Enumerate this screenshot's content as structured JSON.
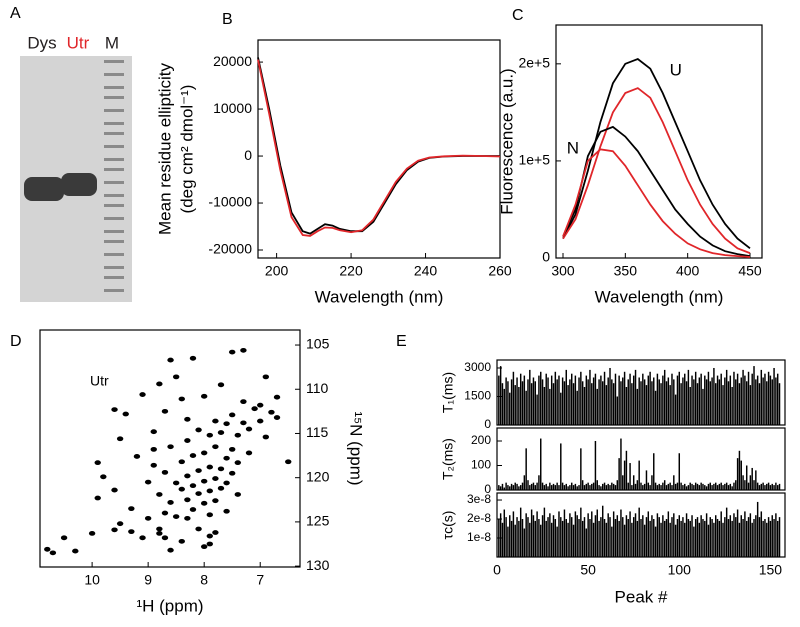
{
  "chart_data": [
    {
      "type": "gel",
      "panel_label": "A",
      "lanes": [
        "Dys",
        "Utr",
        "M"
      ],
      "lane_colors": [
        "#231f20",
        "#e0262a",
        "#231f20"
      ]
    },
    {
      "type": "line",
      "panel_label": "B",
      "x_label": "Wavelength (nm)",
      "y_label": [
        "Mean residue ellipticity",
        "(deg cm² dmol⁻¹)"
      ],
      "x": [
        195,
        198,
        201,
        204,
        207,
        209,
        211,
        213,
        215,
        217,
        220,
        223,
        226,
        229,
        232,
        235,
        238,
        241,
        245,
        250,
        255,
        260
      ],
      "series": [
        {
          "color": "#000000",
          "values": [
            21000,
            10000,
            -2000,
            -12000,
            -16000,
            -16500,
            -15500,
            -14500,
            -14800,
            -15500,
            -16000,
            -16000,
            -14000,
            -10000,
            -6000,
            -3000,
            -1200,
            -400,
            -100,
            0,
            0,
            0
          ]
        },
        {
          "color": "#e0262a",
          "values": [
            20500,
            9000,
            -3000,
            -13000,
            -16800,
            -17000,
            -16000,
            -15200,
            -15300,
            -15800,
            -16200,
            -15800,
            -13500,
            -9500,
            -5500,
            -2700,
            -1000,
            -300,
            -50,
            100,
            0,
            -100
          ]
        }
      ],
      "xlim": [
        195,
        260
      ],
      "xticks": [
        200,
        220,
        240,
        260
      ],
      "ylim": [
        -21700,
        24700
      ],
      "yticks": [
        -20000,
        -10000,
        0,
        10000,
        20000
      ]
    },
    {
      "type": "line",
      "panel_label": "C",
      "x_label": "Wavelength (nm)",
      "y_label": [
        "Fluorescence (a.u.)"
      ],
      "x": [
        300,
        310,
        320,
        330,
        340,
        350,
        360,
        370,
        380,
        390,
        400,
        410,
        420,
        430,
        440,
        450
      ],
      "series": [
        {
          "label": "U",
          "color": "#000000",
          "values": [
            20000,
            45000,
            90000,
            140000,
            180000,
            200000,
            205000,
            195000,
            170000,
            140000,
            110000,
            80000,
            55000,
            35000,
            20000,
            10000
          ]
        },
        {
          "color": "#e0262a",
          "values": [
            20000,
            40000,
            75000,
            115000,
            150000,
            170000,
            175000,
            165000,
            140000,
            110000,
            80000,
            55000,
            35000,
            20000,
            10000,
            5000
          ]
        },
        {
          "label": "N",
          "color": "#000000",
          "values": [
            22000,
            50000,
            105000,
            130000,
            135000,
            125000,
            110000,
            90000,
            70000,
            50000,
            35000,
            22000,
            13000,
            7000,
            4000,
            2000
          ]
        },
        {
          "color": "#e0262a",
          "values": [
            22000,
            55000,
            100000,
            112000,
            110000,
            95000,
            75000,
            55000,
            38000,
            25000,
            15000,
            9000,
            5000,
            3000,
            2000,
            1000
          ]
        }
      ],
      "xlim": [
        300,
        450
      ],
      "xticks": [
        300,
        350,
        400,
        450
      ],
      "ylim": [
        0,
        240000
      ],
      "yticks": [
        0,
        {
          "value": 100000,
          "label": "1e+5"
        },
        {
          "value": 200000,
          "label": "2e+5"
        }
      ]
    },
    {
      "type": "scatter",
      "panel_label": "D",
      "annotation": "Utr",
      "x_label": "¹H (ppm)",
      "y_label": "¹⁵N (ppm)",
      "color": "#000000",
      "x": [
        10.8,
        10.7,
        10.5,
        10.3,
        10.0,
        9.6,
        9.3,
        8.8,
        8.7,
        7.9,
        7.8,
        9.9,
        9.8,
        9.9,
        9.6,
        9.5,
        9.5,
        9.3,
        9.2,
        9.4,
        9.1,
        9.0,
        9.0,
        8.9,
        8.9,
        8.8,
        8.8,
        8.7,
        8.7,
        8.6,
        8.6,
        8.5,
        8.5,
        8.5,
        8.4,
        8.4,
        8.4,
        8.3,
        8.3,
        8.3,
        8.3,
        8.2,
        8.2,
        8.2,
        8.2,
        8.1,
        8.1,
        8.1,
        8.1,
        8.0,
        8.0,
        8.0,
        8.0,
        7.9,
        7.9,
        7.9,
        7.9,
        7.8,
        7.8,
        7.8,
        7.8,
        7.7,
        7.7,
        7.7,
        7.7,
        7.6,
        7.6,
        7.6,
        7.6,
        7.5,
        7.5,
        7.5,
        7.5,
        7.4,
        7.4,
        7.4,
        7.3,
        7.3,
        7.2,
        7.2,
        7.1,
        7.0,
        7.0,
        6.9,
        6.9,
        6.8,
        6.7,
        6.7,
        6.5,
        8.6,
        7.3,
        8.8,
        8.4,
        8.9,
        9.1,
        8.6,
        8.3,
        7.9,
        8.7,
        9.6,
        8.0
      ],
      "y": [
        128.1,
        128.5,
        126.8,
        128.3,
        126.3,
        125.9,
        126.1,
        125.8,
        126.8,
        127.5,
        126.2,
        118.3,
        119.9,
        122.3,
        121.4,
        115.6,
        125.2,
        123.5,
        117.6,
        112.8,
        110.6,
        120.5,
        124.6,
        118.6,
        114.8,
        121.9,
        126.3,
        112.5,
        119.4,
        122.8,
        116.5,
        120.6,
        124.4,
        108.6,
        118.2,
        121.3,
        127.2,
        119.8,
        122.5,
        115.8,
        113.4,
        120.9,
        123.6,
        117.5,
        106.5,
        119.2,
        121.8,
        125.8,
        114.6,
        120.4,
        122.9,
        117.2,
        110.8,
        118.8,
        121.5,
        124.2,
        115.2,
        120.1,
        122.6,
        116.5,
        113.6,
        119.0,
        121.2,
        114.9,
        109.5,
        117.8,
        120.6,
        123.8,
        113.9,
        116.8,
        119.5,
        112.9,
        105.8,
        115.2,
        118.3,
        121.9,
        113.8,
        111.4,
        114.5,
        117.2,
        112.2,
        113.6,
        111.8,
        115.4,
        108.6,
        112.6,
        110.9,
        113.2,
        118.2,
        106.7,
        105.6,
        109.4,
        111.1,
        116.8,
        126.8,
        128.2,
        124.6,
        126.6,
        124.0,
        112.3,
        127.8
      ],
      "xlim": [
        6.29,
        10.93
      ],
      "x_inverted": true,
      "xticks": [
        10,
        9,
        8,
        7
      ],
      "ylim": [
        103.3,
        130.1
      ],
      "y_inverted": true,
      "y_axis_side": "right",
      "yticks": [
        105,
        110,
        115,
        120,
        125,
        130
      ]
    },
    {
      "type": "bar",
      "panel_label": "E",
      "x_label": "Peak #",
      "color": "#000000",
      "x": [
        1,
        2,
        3,
        4,
        5,
        6,
        7,
        8,
        9,
        10,
        11,
        12,
        13,
        14,
        15,
        16,
        17,
        18,
        19,
        20,
        21,
        22,
        23,
        24,
        25,
        26,
        27,
        28,
        29,
        30,
        31,
        32,
        33,
        34,
        35,
        36,
        37,
        38,
        39,
        40,
        41,
        42,
        43,
        44,
        45,
        46,
        47,
        48,
        49,
        50,
        51,
        52,
        53,
        54,
        55,
        56,
        57,
        58,
        59,
        60,
        61,
        62,
        63,
        64,
        65,
        66,
        67,
        68,
        69,
        70,
        71,
        72,
        73,
        74,
        75,
        76,
        77,
        78,
        79,
        80,
        81,
        82,
        83,
        84,
        85,
        86,
        87,
        88,
        89,
        90,
        91,
        92,
        93,
        94,
        95,
        96,
        97,
        98,
        99,
        100,
        101,
        102,
        103,
        104,
        105,
        106,
        107,
        108,
        109,
        110,
        111,
        112,
        113,
        114,
        115,
        116,
        117,
        118,
        119,
        120,
        121,
        122,
        123,
        124,
        125,
        126,
        127,
        128,
        129,
        130,
        131,
        132,
        133,
        134,
        135,
        136,
        137,
        138,
        139,
        140,
        141,
        142,
        143,
        144,
        145,
        146,
        147,
        148,
        149,
        150,
        151,
        152,
        153,
        154,
        155
      ],
      "xlim": [
        0,
        158
      ],
      "xticks": [
        0,
        50,
        100,
        150
      ],
      "panels": [
        {
          "y_label": "T₁(ms)",
          "ylim": [
            0,
            3420
          ],
          "yticks": [
            0,
            1500,
            3000
          ],
          "values": [
            2600,
            3100,
            2200,
            1900,
            2500,
            2300,
            1700,
            2400,
            2800,
            2100,
            2500,
            2000,
            2700,
            2300,
            2600,
            1800,
            2400,
            2900,
            2200,
            2500,
            2300,
            1600,
            2600,
            2800,
            2400,
            2000,
            2700,
            2500,
            1900,
            2600,
            2200,
            2800,
            2400,
            2600,
            1700,
            2500,
            2300,
            2900,
            2100,
            2400,
            2700,
            2200,
            2600,
            1800,
            2500,
            2800,
            2300,
            2000,
            2600,
            2400,
            2900,
            2200,
            2500,
            2700,
            1900,
            2400,
            2600,
            2300,
            2800,
            2100,
            2500,
            3000,
            2400,
            2200,
            2700,
            1500,
            2600,
            2300,
            2500,
            2800,
            2000,
            2400,
            2700,
            2200,
            2600,
            2900,
            1900,
            2500,
            2300,
            2700,
            2400,
            2100,
            2600,
            2800,
            2300,
            2500,
            1800,
            2700,
            2400,
            2200,
            2600,
            2900,
            2300,
            2500,
            2100,
            2700,
            2400,
            1600,
            2600,
            2800,
            2200,
            2500,
            2700,
            2300,
            2900,
            2000,
            2600,
            2400,
            2800,
            2200,
            2500,
            2700,
            1900,
            2600,
            2400,
            2800,
            2300,
            2500,
            3000,
            2200,
            2600,
            2400,
            2700,
            2100,
            2500,
            2900,
            2300,
            2600,
            2000,
            2800,
            2400,
            2700,
            2200,
            2500,
            2900,
            2600,
            2300,
            2800,
            2100,
            2700,
            3100,
            2400,
            2600,
            2200,
            2900,
            2500,
            2700,
            2300,
            2800,
            2600,
            2400,
            3000,
            2500,
            2700,
            2200
          ]
        },
        {
          "y_label": "T₂(ms)",
          "ylim": [
            0,
            253
          ],
          "yticks": [
            0,
            100,
            200
          ],
          "values": [
            20,
            15,
            25,
            10,
            30,
            20,
            15,
            25,
            20,
            30,
            25,
            15,
            20,
            30,
            60,
            170,
            40,
            20,
            25,
            30,
            20,
            30,
            60,
            210,
            30,
            20,
            25,
            15,
            30,
            20,
            25,
            20,
            30,
            20,
            190,
            30,
            20,
            25,
            15,
            20,
            30,
            20,
            25,
            15,
            20,
            170,
            40,
            20,
            25,
            30,
            20,
            25,
            30,
            200,
            40,
            20,
            15,
            25,
            30,
            20,
            25,
            20,
            30,
            25,
            20,
            40,
            130,
            210,
            60,
            120,
            160,
            30,
            110,
            20,
            60,
            25,
            40,
            120,
            30,
            20,
            25,
            80,
            30,
            20,
            60,
            150,
            30,
            20,
            25,
            20,
            30,
            40,
            20,
            25,
            30,
            20,
            60,
            25,
            30,
            150,
            30,
            20,
            25,
            15,
            20,
            30,
            25,
            20,
            30,
            25,
            20,
            30,
            25,
            20,
            15,
            25,
            30,
            20,
            25,
            30,
            20,
            25,
            30,
            20,
            25,
            30,
            20,
            25,
            15,
            30,
            40,
            130,
            160,
            120,
            60,
            40,
            100,
            30,
            60,
            90,
            40,
            80,
            30,
            20,
            25,
            30,
            20,
            25,
            30,
            20,
            25,
            20,
            30,
            20,
            25
          ]
        },
        {
          "y_label": "τc(s)",
          "ylim": [
            0,
            3.37e-08
          ],
          "yticks": [
            {
              "value": 1e-08,
              "label": "1e-8"
            },
            {
              "value": 2e-08,
              "label": "2e-8"
            },
            {
              "value": 3e-08,
              "label": "3e-8"
            }
          ],
          "values": [
            2e-08,
            2.3e-08,
            1.8e-08,
            2.5e-08,
            2.1e-08,
            1.6e-08,
            2.2e-08,
            1.9e-08,
            2.4e-08,
            1.7e-08,
            2.1e-08,
            1.9e-08,
            2.6e-08,
            2e-08,
            1.5e-08,
            2.3e-08,
            2.1e-08,
            1.8e-08,
            2.5e-08,
            2.2e-08,
            1.9e-08,
            2.4e-08,
            2e-08,
            1.7e-08,
            2.2e-08,
            2.6e-08,
            1.9e-08,
            2.1e-08,
            2.3e-08,
            1.8e-08,
            2.2e-08,
            2e-08,
            1.6e-08,
            2.4e-08,
            2.1e-08,
            1.9e-08,
            2.5e-08,
            2e-08,
            1.8e-08,
            2.3e-08,
            2.1e-08,
            1.7e-08,
            2.4e-08,
            2.2e-08,
            2e-08,
            2.6e-08,
            1.9e-08,
            2.1e-08,
            1.5e-08,
            2.3e-08,
            2e-08,
            2.4e-08,
            1.8e-08,
            2.2e-08,
            2.5e-08,
            1.9e-08,
            2.1e-08,
            2.7e-08,
            2e-08,
            1.8e-08,
            2.3e-08,
            2.1e-08,
            1.6e-08,
            2.4e-08,
            2e-08,
            2.2e-08,
            1.9e-08,
            2.5e-08,
            2.1e-08,
            1.7e-08,
            2.2e-08,
            2e-08,
            2.4e-08,
            1.8e-08,
            2.1e-08,
            2.3e-08,
            1.9e-08,
            2.6e-08,
            2e-08,
            2.2e-08,
            1.7e-08,
            2.1e-08,
            2.4e-08,
            1.9e-08,
            2.2e-08,
            2e-08,
            1.6e-08,
            2.3e-08,
            2.1e-08,
            1.8e-08,
            2.2e-08,
            1.9e-08,
            2e-08,
            2.4e-08,
            1.8e-08,
            2.1e-08,
            2.3e-08,
            1.7e-08,
            2e-08,
            2.2e-08,
            1.9e-08,
            2.1e-08,
            1.8e-08,
            2.3e-08,
            2e-08,
            1.9e-08,
            2.2e-08,
            1.6e-08,
            2e-08,
            2.1e-08,
            1.8e-08,
            2.2e-08,
            2e-08,
            1.9e-08,
            2.3e-08,
            1.7e-08,
            2.1e-08,
            2e-08,
            1.8e-08,
            2.2e-08,
            2e-08,
            1.9e-08,
            2.4e-08,
            1.8e-08,
            2.1e-08,
            2.6e-08,
            2e-08,
            2.2e-08,
            1.9e-08,
            2.3e-08,
            2.1e-08,
            2.5e-08,
            1.8e-08,
            2.2e-08,
            2e-08,
            2.4e-08,
            1.9e-08,
            2.1e-08,
            2.3e-08,
            1.8e-08,
            2e-08,
            2.2e-08,
            2.9e-08,
            2.1e-08,
            2.4e-08,
            1.9e-08,
            2e-08,
            1.8e-08,
            2.1e-08,
            1.9e-08,
            2.2e-08,
            2e-08,
            2.3e-08,
            1.9e-08,
            2.1e-08
          ]
        }
      ]
    }
  ]
}
